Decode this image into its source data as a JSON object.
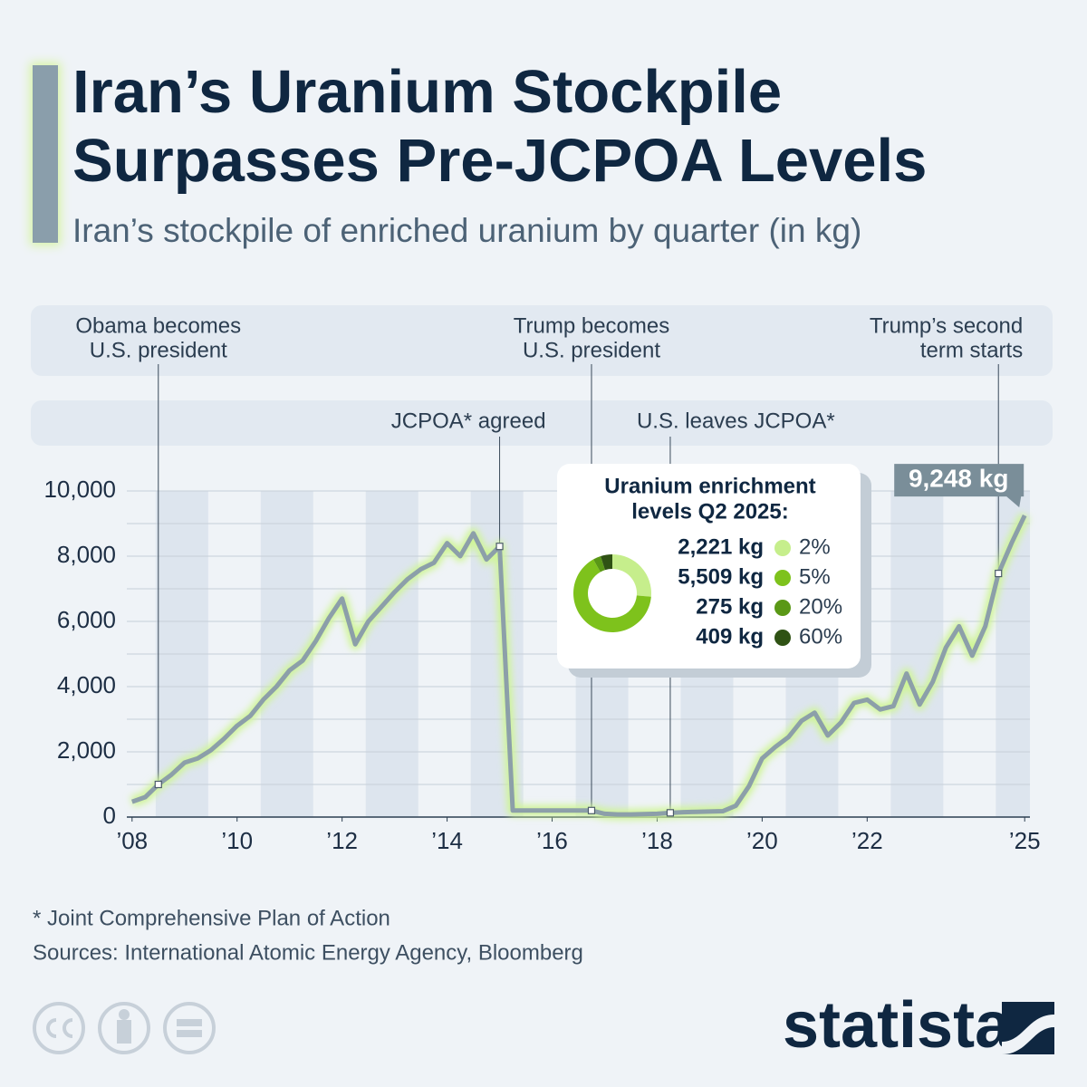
{
  "brand": "statista",
  "chart_data": [
    {
      "type": "line",
      "title": "Iran’s Uranium Stockpile Surpasses Pre-JCPOA Levels",
      "subtitle": "Iran’s stockpile of enriched uranium by quarter (in kg)",
      "x": [
        2008,
        2008.25,
        2008.5,
        2008.75,
        2009,
        2009.25,
        2009.5,
        2009.75,
        2010,
        2010.25,
        2010.5,
        2010.75,
        2011,
        2011.25,
        2011.5,
        2011.75,
        2012,
        2012.25,
        2012.5,
        2012.75,
        2013,
        2013.25,
        2013.5,
        2013.75,
        2014,
        2014.25,
        2014.5,
        2014.75,
        2015,
        2015.25,
        2015.5,
        2015.75,
        2016,
        2016.25,
        2016.5,
        2016.75,
        2017,
        2017.25,
        2017.5,
        2017.75,
        2018,
        2018.25,
        2018.5,
        2018.75,
        2019,
        2019.25,
        2019.5,
        2019.75,
        2020,
        2020.25,
        2020.5,
        2020.75,
        2021,
        2021.25,
        2021.5,
        2021.75,
        2022,
        2022.25,
        2022.5,
        2022.75,
        2023,
        2023.25,
        2023.5,
        2023.75,
        2024,
        2024.25,
        2024.5,
        2024.75,
        2025
      ],
      "values": [
        470,
        610,
        1000,
        1300,
        1670,
        1800,
        2050,
        2400,
        2800,
        3100,
        3600,
        4000,
        4500,
        4800,
        5400,
        6100,
        6700,
        5300,
        6000,
        6450,
        6900,
        7300,
        7600,
        7800,
        8400,
        8000,
        8700,
        7900,
        8300,
        200,
        200,
        200,
        200,
        200,
        200,
        200,
        100,
        80,
        80,
        90,
        100,
        130,
        150,
        160,
        170,
        180,
        350,
        950,
        1800,
        2150,
        2450,
        2950,
        3200,
        2500,
        2900,
        3500,
        3600,
        3300,
        3400,
        4400,
        3450,
        4150,
        5200,
        5850,
        4950,
        5850,
        7470,
        8400,
        9248
      ],
      "value_labels": [
        null,
        null,
        null,
        null,
        null,
        null,
        null,
        null,
        null,
        null,
        null,
        null,
        null,
        null,
        null,
        null,
        null,
        null,
        null,
        null,
        null,
        null,
        null,
        null,
        null,
        null,
        null,
        null,
        null,
        null,
        null,
        null,
        null,
        null,
        null,
        null,
        null,
        null,
        null,
        null,
        null,
        null,
        null,
        null,
        null,
        null,
        null,
        null,
        null,
        null,
        null,
        null,
        null,
        null,
        null,
        null,
        null,
        null,
        null,
        null,
        null,
        null,
        null,
        null,
        null,
        null,
        null,
        null,
        "9,248 kg"
      ],
      "color": "#8c9fa9",
      "glow_color": "#cff596",
      "xlim": [
        2007.9,
        2025.1
      ],
      "xticks": [
        {
          "value": 2008,
          "label": "’08"
        },
        {
          "value": 2010,
          "label": "’10"
        },
        {
          "value": 2012,
          "label": "’12"
        },
        {
          "value": 2014,
          "label": "’14"
        },
        {
          "value": 2016,
          "label": "’16"
        },
        {
          "value": 2018,
          "label": "’18"
        },
        {
          "value": 2020,
          "label": "’20"
        },
        {
          "value": 2022,
          "label": "’22"
        },
        {
          "value": 2025,
          "label": "’25"
        }
      ],
      "ylim": [
        0,
        10000
      ],
      "yticks": [
        0,
        {
          "value": 2000,
          "label": "2,000"
        },
        {
          "value": 4000,
          "label": "4,000"
        },
        {
          "value": 6000,
          "label": "6,000"
        },
        {
          "value": 8000,
          "label": "8,000"
        },
        {
          "value": 10000,
          "label": "10,000"
        }
      ],
      "yticks_minor": [
        1000,
        3000,
        5000,
        7000,
        9000
      ],
      "grid": true,
      "events": [
        {
          "x": 2008.5,
          "text": [
            "Obama becomes",
            "U.S. president"
          ]
        },
        {
          "x": 2015,
          "text": [
            "JCPOA* agreed"
          ]
        },
        {
          "x": 2016.75,
          "text": [
            "Trump becomes",
            "U.S. president"
          ]
        },
        {
          "x": 2018.25,
          "text": [
            "U.S. leaves JCPOA*"
          ]
        },
        {
          "x": 2024.5,
          "text": [
            "Trump’s second",
            "term starts"
          ]
        }
      ],
      "footnote": "* Joint Comprehensive Plan of Action",
      "source": "Sources: International Atomic Energy Agency, Bloomberg"
    },
    {
      "type": "pie",
      "donut": true,
      "title": [
        "Uranium enrichment",
        "levels Q2 2025:"
      ],
      "categories": [
        "2%",
        "5%",
        "20%",
        "60%"
      ],
      "values": [
        2221,
        5509,
        275,
        409
      ],
      "value_labels": [
        "2,221 kg",
        "5,509 kg",
        "275 kg",
        "409 kg"
      ],
      "colors": [
        "#c6ee8c",
        "#7ec21c",
        "#5a9816",
        "#2f5214"
      ]
    }
  ]
}
